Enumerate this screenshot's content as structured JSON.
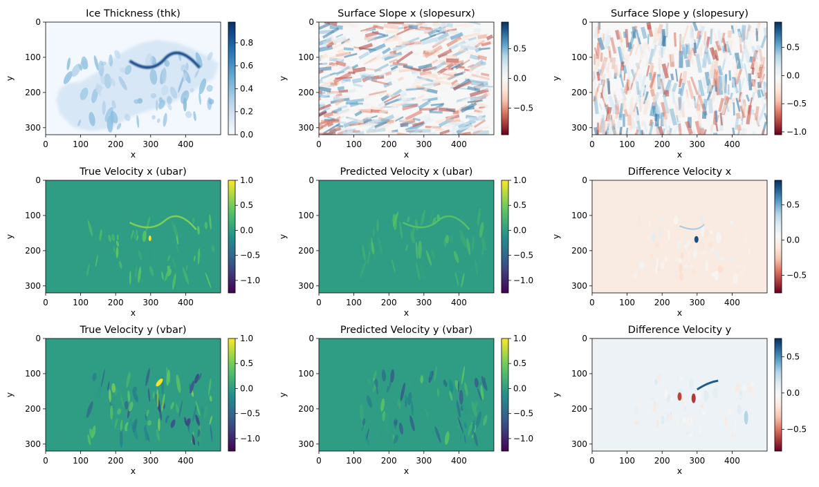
{
  "chart_data": [
    {
      "type": "heatmap",
      "title": "Ice Thickness (thk)",
      "xlabel": "x",
      "ylabel": "y",
      "xlim": [
        0,
        500
      ],
      "ylim": [
        320,
        0
      ],
      "xticks": [
        0,
        100,
        200,
        300,
        400
      ],
      "yticks": [
        0,
        100,
        200,
        300
      ],
      "colormap": "Blues",
      "colorbar": {
        "range": [
          0.0,
          0.98
        ],
        "ticks": [
          "0.0",
          "0.2",
          "0.4",
          "0.6",
          "0.8"
        ],
        "tick_values": [
          0.0,
          0.2,
          0.4,
          0.6,
          0.8
        ]
      }
    },
    {
      "type": "heatmap",
      "title": "Surface Slope x (slopesurx)",
      "xlabel": "x",
      "ylabel": "y",
      "xlim": [
        0,
        500
      ],
      "ylim": [
        320,
        0
      ],
      "xticks": [
        0,
        100,
        200,
        300,
        400
      ],
      "yticks": [
        0,
        100,
        200,
        300
      ],
      "colormap": "RdBu",
      "colorbar": {
        "range": [
          -0.95,
          0.95
        ],
        "ticks": [
          "−0.5",
          "0.0",
          "0.5"
        ],
        "tick_values": [
          -0.5,
          0.0,
          0.5
        ]
      }
    },
    {
      "type": "heatmap",
      "title": "Surface Slope y (slopesury)",
      "xlabel": "x",
      "ylabel": "y",
      "xlim": [
        0,
        500
      ],
      "ylim": [
        320,
        0
      ],
      "xticks": [
        0,
        100,
        200,
        300,
        400
      ],
      "yticks": [
        0,
        100,
        200,
        300
      ],
      "colormap": "RdBu",
      "colorbar": {
        "range": [
          -1.05,
          0.95
        ],
        "ticks": [
          "−1.0",
          "−0.5",
          "0.0",
          "0.5"
        ],
        "tick_values": [
          -1.0,
          -0.5,
          0.0,
          0.5
        ]
      }
    },
    {
      "type": "heatmap",
      "title": "True Velocity x (ubar)",
      "xlabel": "x",
      "ylabel": "y",
      "xlim": [
        0,
        500
      ],
      "ylim": [
        320,
        0
      ],
      "xticks": [
        0,
        100,
        200,
        300,
        400
      ],
      "yticks": [
        0,
        100,
        200,
        300
      ],
      "colormap": "viridis",
      "colorbar": {
        "range": [
          -1.25,
          1.0
        ],
        "ticks": [
          "−1.0",
          "−0.5",
          "0.0",
          "0.5",
          "1.0"
        ],
        "tick_values": [
          -1.0,
          -0.5,
          0.0,
          0.5,
          1.0
        ]
      }
    },
    {
      "type": "heatmap",
      "title": "Predicted Velocity x (ubar)",
      "xlabel": "x",
      "ylabel": "y",
      "xlim": [
        0,
        500
      ],
      "ylim": [
        320,
        0
      ],
      "xticks": [
        0,
        100,
        200,
        300,
        400
      ],
      "yticks": [
        0,
        100,
        200,
        300
      ],
      "colormap": "viridis",
      "colorbar": {
        "range": [
          -1.25,
          1.0
        ],
        "ticks": [
          "−1.0",
          "−0.5",
          "0.0",
          "0.5",
          "1.0"
        ],
        "tick_values": [
          -1.0,
          -0.5,
          0.0,
          0.5,
          1.0
        ]
      }
    },
    {
      "type": "heatmap",
      "title": "Difference Velocity x",
      "xlabel": "x",
      "ylabel": "y",
      "xlim": [
        0,
        500
      ],
      "ylim": [
        320,
        0
      ],
      "xticks": [
        0,
        100,
        200,
        300,
        400
      ],
      "yticks": [
        0,
        100,
        200,
        300
      ],
      "colormap": "RdBu",
      "colorbar": {
        "range": [
          -0.75,
          0.85
        ],
        "ticks": [
          "−0.5",
          "0.0",
          "0.5"
        ],
        "tick_values": [
          -0.5,
          0.0,
          0.5
        ]
      }
    },
    {
      "type": "heatmap",
      "title": "True Velocity y (vbar)",
      "xlabel": "x",
      "ylabel": "y",
      "xlim": [
        0,
        500
      ],
      "ylim": [
        320,
        0
      ],
      "xticks": [
        0,
        100,
        200,
        300,
        400
      ],
      "yticks": [
        0,
        100,
        200,
        300
      ],
      "colormap": "viridis",
      "colorbar": {
        "range": [
          -1.25,
          1.0
        ],
        "ticks": [
          "−1.0",
          "−0.5",
          "0.0",
          "0.5",
          "1.0"
        ],
        "tick_values": [
          -1.0,
          -0.5,
          0.0,
          0.5,
          1.0
        ]
      }
    },
    {
      "type": "heatmap",
      "title": "Predicted Velocity y (vbar)",
      "xlabel": "x",
      "ylabel": "y",
      "xlim": [
        0,
        500
      ],
      "ylim": [
        320,
        0
      ],
      "xticks": [
        0,
        100,
        200,
        300,
        400
      ],
      "yticks": [
        0,
        100,
        200,
        300
      ],
      "colormap": "viridis",
      "colorbar": {
        "range": [
          -1.25,
          1.0
        ],
        "ticks": [
          "−1.0",
          "−0.5",
          "0.0",
          "0.5",
          "1.0"
        ],
        "tick_values": [
          -1.0,
          -0.5,
          0.0,
          0.5,
          1.0
        ]
      }
    },
    {
      "type": "heatmap",
      "title": "Difference Velocity y",
      "xlabel": "x",
      "ylabel": "y",
      "xlim": [
        0,
        500
      ],
      "ylim": [
        320,
        0
      ],
      "xticks": [
        0,
        100,
        200,
        300,
        400
      ],
      "yticks": [
        0,
        100,
        200,
        300
      ],
      "colormap": "RdBu",
      "colorbar": {
        "range": [
          -0.8,
          0.75
        ],
        "ticks": [
          "−0.5",
          "0.0",
          "0.5"
        ],
        "tick_values": [
          -0.5,
          0.0,
          0.5
        ]
      }
    }
  ]
}
